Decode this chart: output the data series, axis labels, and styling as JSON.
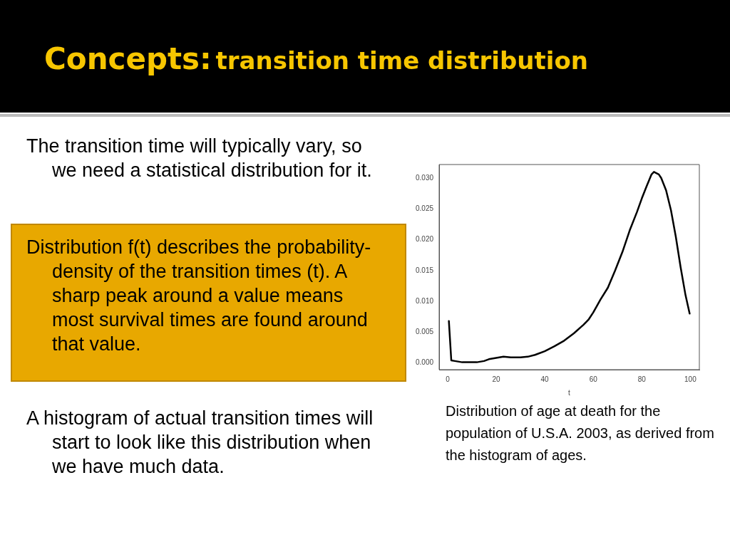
{
  "chart_data": {
    "type": "line",
    "title": "Concepts:",
    "subtitle": "transition time distribution",
    "xlabel": "t",
    "annotations": [
      "The transition time will typically vary, so we need a statistical distribution for it.",
      "Distribution f(t) describes the probability-density of  the transition times (t). A sharp peak around a value means most survival times are found around that value.",
      "A histogram of actual transition times will start to look like this distribution when we have much data.",
      "Distribution of age at death for the population of U.S.A. 2003, as derived from the histogram of ages."
    ],
    "x": [
      0.5,
      1.5,
      3,
      6,
      12,
      15,
      17,
      20,
      23,
      26,
      30,
      33,
      36,
      40,
      44,
      48,
      52,
      56,
      58,
      60,
      63,
      66,
      69,
      72,
      75,
      78,
      80,
      82,
      84,
      85,
      87,
      88,
      90,
      92,
      94,
      96,
      98,
      99.7
    ],
    "series": [
      {
        "color": "#000000",
        "values": [
          0.0068,
          0.0004,
          0.0003,
          0.0001,
          0.0001,
          0.0003,
          0.0006,
          0.0008,
          0.001,
          0.0009,
          0.0009,
          0.001,
          0.0013,
          0.0019,
          0.0027,
          0.0036,
          0.0048,
          0.0062,
          0.007,
          0.0082,
          0.0103,
          0.0122,
          0.015,
          0.018,
          0.0215,
          0.0245,
          0.0267,
          0.0287,
          0.0306,
          0.031,
          0.0306,
          0.03,
          0.028,
          0.0248,
          0.0205,
          0.0155,
          0.011,
          0.008
        ]
      }
    ],
    "xlim": [
      -3.5,
      103.7
    ],
    "ylim": [
      -0.0011,
      0.0322
    ],
    "xticks": [
      0,
      20,
      40,
      60,
      80,
      100
    ],
    "yticks": [
      {
        "value": 0,
        "label": "0.000"
      },
      {
        "value": 0.005,
        "label": "0.005"
      },
      {
        "value": 0.01,
        "label": "0.010"
      },
      {
        "value": 0.015,
        "label": "0.015"
      },
      {
        "value": 0.02,
        "label": "0.020"
      },
      {
        "value": 0.025,
        "label": "0.025"
      },
      {
        "value": 0.03,
        "label": "0.030"
      }
    ],
    "grid": false,
    "legend": false,
    "marker": "none",
    "line_style": "solid"
  }
}
